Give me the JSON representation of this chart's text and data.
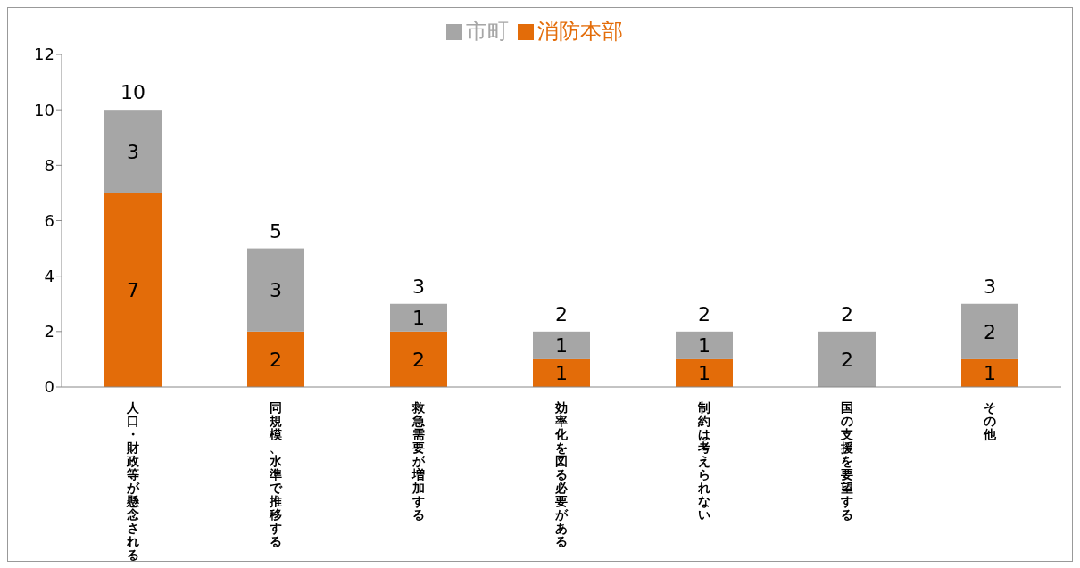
{
  "chart_data": {
    "type": "bar",
    "stacked": true,
    "categories": [
      "人口・財政等が懸念される",
      "同規模、水準で推移する",
      "救急需要が増加する",
      "効率化を図る必要がある",
      "制約は考えられない",
      "国の支援を要望する",
      "その他"
    ],
    "series": [
      {
        "name": "消防本部",
        "color": "#e36c09",
        "values": [
          7,
          2,
          2,
          1,
          1,
          0,
          1
        ],
        "value_labels": [
          "7",
          "2",
          "2",
          "1",
          "1",
          null,
          "1"
        ]
      },
      {
        "name": "市町",
        "color": "#a6a6a6",
        "values": [
          3,
          3,
          1,
          1,
          1,
          2,
          2
        ],
        "value_labels": [
          "3",
          "3",
          "1",
          "1",
          "1",
          "2",
          "2"
        ]
      }
    ],
    "totals": [
      "10",
      "5",
      "3",
      "2",
      "2",
      "2",
      "3"
    ],
    "ylim": [
      0,
      12
    ],
    "yticks": [
      0,
      2,
      4,
      6,
      8,
      10,
      12
    ],
    "grid": false,
    "legend": "top"
  }
}
